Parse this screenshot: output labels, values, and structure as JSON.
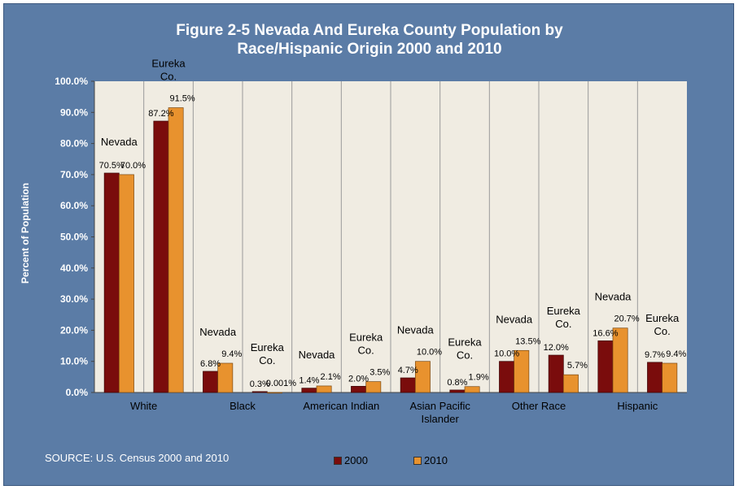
{
  "chart_data": {
    "type": "bar",
    "title_lines": [
      "Figure 2-5 Nevada And Eureka County Population by",
      "Race/Hispanic Origin 2000 and 2010"
    ],
    "ylabel": "Percent of Population",
    "ylim": [
      0,
      100
    ],
    "yticks": [
      "0.0%",
      "10.0%",
      "20.0%",
      "30.0%",
      "40.0%",
      "50.0%",
      "60.0%",
      "70.0%",
      "80.0%",
      "90.0%",
      "100.0%"
    ],
    "categories": [
      {
        "label": "White",
        "lines": [
          "White"
        ],
        "cluster_labels": [
          "Nevada",
          "Eureka Co."
        ]
      },
      {
        "label": "Black",
        "lines": [
          "Black"
        ],
        "cluster_labels": [
          "Nevada",
          "Eureka Co."
        ]
      },
      {
        "label": "American Indian",
        "lines": [
          "American Indian"
        ],
        "cluster_labels": [
          "Nevada",
          "Eureka Co."
        ]
      },
      {
        "label": "Asian Pacific Islander",
        "lines": [
          "Asian Pacific",
          "Islander"
        ],
        "cluster_labels": [
          "Nevada",
          "Eureka Co."
        ]
      },
      {
        "label": "Other Race",
        "lines": [
          "Other Race"
        ],
        "cluster_labels": [
          "Nevada",
          "Eureka Co."
        ]
      },
      {
        "label": "Hispanic",
        "lines": [
          "Hispanic"
        ],
        "cluster_labels": [
          "Nevada",
          "Eureka Co."
        ]
      }
    ],
    "series": [
      {
        "name": "2000",
        "color": "#7a0c0c",
        "nevada": [
          70.5,
          6.8,
          1.4,
          4.7,
          10.0,
          16.6
        ],
        "eureka": [
          87.2,
          0.3,
          2.0,
          0.8,
          12.0,
          9.7
        ],
        "nevada_labels": [
          "70.5%",
          "6.8%",
          "1.4%",
          "4.7%",
          "10.0%",
          "16.6%"
        ],
        "eureka_labels": [
          "87.2%",
          "0.3%",
          "2.0%",
          "0.8%",
          "12.0%",
          "9.7%"
        ]
      },
      {
        "name": "2010",
        "color": "#e8922e",
        "nevada": [
          70.0,
          9.4,
          2.1,
          10.0,
          13.5,
          20.7
        ],
        "eureka": [
          91.5,
          0.001,
          3.5,
          1.9,
          5.7,
          9.4
        ],
        "nevada_labels": [
          "70.0%",
          "9.4%",
          "2.1%",
          "10.0%",
          "13.5%",
          "20.7%"
        ],
        "eureka_labels": [
          "91.5%",
          "0.001%",
          "3.5%",
          "1.9%",
          "5.7%",
          "9.4%"
        ]
      }
    ],
    "grid": "vertical",
    "plot_background": "#f0ece2",
    "legend": {
      "position": "bottom-center",
      "items": [
        "2000",
        "2010"
      ]
    }
  },
  "source": "SOURCE: U.S. Census 2000 and 2010"
}
